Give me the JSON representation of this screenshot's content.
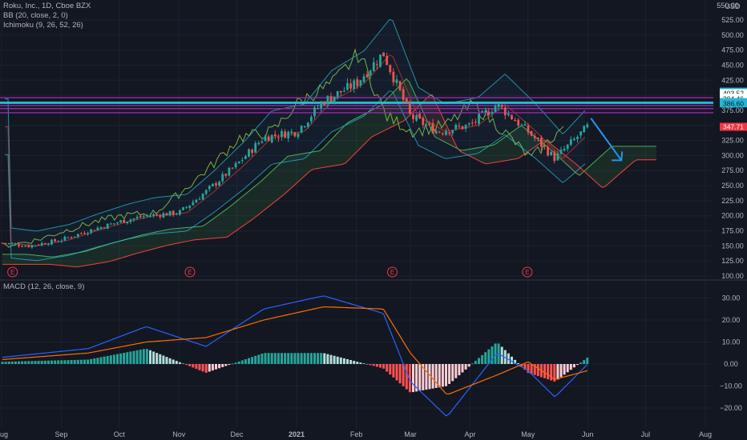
{
  "legend": {
    "symbol": "Roku, Inc., 1D, Cboe BZX",
    "bb": "BB (20, close, 2, 0)",
    "ichimoku": "Ichimoku (9, 26, 52, 26)",
    "macd": "MACD (12, 26, close, 9)"
  },
  "currency": "USD",
  "price_axis": {
    "top_label": "550.00",
    "ticks": [
      525,
      500,
      475,
      450,
      425,
      400,
      375,
      350,
      325,
      300,
      275,
      250,
      225,
      200,
      175,
      150,
      125,
      100
    ],
    "tick_labels": [
      "525.00",
      "500.00",
      "475.00",
      "450.00",
      "425.00",
      "400.00",
      "375.00",
      "350.00",
      "325.00",
      "300.00",
      "275.00",
      "250.00",
      "225.00",
      "200.00",
      "175.00",
      "150.00",
      "125.00",
      "100.00"
    ]
  },
  "macd_axis": {
    "ticks": [
      30,
      20,
      10,
      0,
      -10,
      -20
    ],
    "tick_labels": [
      "30.00",
      "20.00",
      "10.00",
      "0.00",
      "−10.00",
      "−20.00"
    ]
  },
  "time_axis": {
    "labels": [
      "Aug",
      "Sep",
      "Oct",
      "Nov",
      "Dec",
      "2021",
      "Feb",
      "Mar",
      "Apr",
      "May",
      "Jun",
      "Jul",
      "Aug"
    ]
  },
  "earnings_marker": "E",
  "price_badges": [
    {
      "value": 406.02,
      "label": "406.02",
      "color": "#22b7d6"
    },
    {
      "value": 403.52,
      "label": "403.52",
      "color": "#ffffff"
    },
    {
      "value": 396.06,
      "label": "396.06",
      "color": "#ffffff"
    },
    {
      "value": 394.46,
      "label": "394.46",
      "color": "#ffffff"
    },
    {
      "value": 388.65,
      "label": "388.65",
      "color": "#22b7d6"
    },
    {
      "value": 386.6,
      "label": "386.60",
      "color": "#22b7d6"
    },
    {
      "value": 347.71,
      "label": "347.71",
      "color": "#f23645"
    }
  ],
  "horizontal_levels": [
    {
      "value": 396.06,
      "color": "#9c27b0"
    },
    {
      "value": 388.65,
      "color": "#26c6da"
    },
    {
      "value": 386.6,
      "color": "#26c6da"
    },
    {
      "value": 383.0,
      "color": "#9c27b0"
    },
    {
      "value": 378.0,
      "color": "#9c27b0"
    },
    {
      "value": 371.0,
      "color": "#9c27b0"
    }
  ],
  "colors": {
    "up": "#26a69a",
    "down": "#ef5350",
    "macd_line": "#2962ff",
    "signal_line": "#ff6d00",
    "bb_line": "#26c6da",
    "kumo_bull": "#4caf50",
    "kumo_bear": "#f44336",
    "lagging": "#7cb342",
    "arrow": "#2196f3"
  },
  "chart_data": {
    "type": "candlestick",
    "symbol": "ROKU",
    "interval": "1D",
    "price_range": [
      100,
      550
    ],
    "macd_range": [
      -25,
      35
    ],
    "price_path": [
      {
        "date": "2020-08-01",
        "close": 155
      },
      {
        "date": "2020-08-15",
        "close": 150
      },
      {
        "date": "2020-09-01",
        "close": 160
      },
      {
        "date": "2020-09-15",
        "close": 175
      },
      {
        "date": "2020-10-01",
        "close": 190
      },
      {
        "date": "2020-10-15",
        "close": 200
      },
      {
        "date": "2020-11-01",
        "close": 205
      },
      {
        "date": "2020-11-15",
        "close": 240
      },
      {
        "date": "2020-12-01",
        "close": 285
      },
      {
        "date": "2020-12-15",
        "close": 330
      },
      {
        "date": "2021-01-01",
        "close": 340
      },
      {
        "date": "2021-01-15",
        "close": 390
      },
      {
        "date": "2021-02-01",
        "close": 420
      },
      {
        "date": "2021-02-15",
        "close": 470
      },
      {
        "date": "2021-03-01",
        "close": 365
      },
      {
        "date": "2021-03-15",
        "close": 340
      },
      {
        "date": "2021-04-01",
        "close": 350
      },
      {
        "date": "2021-04-15",
        "close": 385
      },
      {
        "date": "2021-05-01",
        "close": 340
      },
      {
        "date": "2021-05-15",
        "close": 295
      },
      {
        "date": "2021-06-01",
        "close": 347.71
      }
    ],
    "macd": [
      {
        "date": "2020-08-01",
        "macd": 3,
        "signal": 2
      },
      {
        "date": "2020-09-15",
        "macd": 7,
        "signal": 5
      },
      {
        "date": "2020-10-15",
        "macd": 17,
        "signal": 10
      },
      {
        "date": "2020-11-15",
        "macd": 8,
        "signal": 12
      },
      {
        "date": "2020-12-15",
        "macd": 25,
        "signal": 20
      },
      {
        "date": "2021-01-15",
        "macd": 31,
        "signal": 26
      },
      {
        "date": "2021-02-15",
        "macd": 23,
        "signal": 25
      },
      {
        "date": "2021-03-01",
        "macd": -8,
        "signal": 5
      },
      {
        "date": "2021-03-20",
        "macd": -24,
        "signal": -14
      },
      {
        "date": "2021-04-15",
        "macd": 5,
        "signal": -5
      },
      {
        "date": "2021-05-01",
        "macd": -3,
        "signal": 1
      },
      {
        "date": "2021-05-15",
        "macd": -15,
        "signal": -7
      },
      {
        "date": "2021-06-01",
        "macd": 0,
        "signal": -3
      }
    ]
  }
}
